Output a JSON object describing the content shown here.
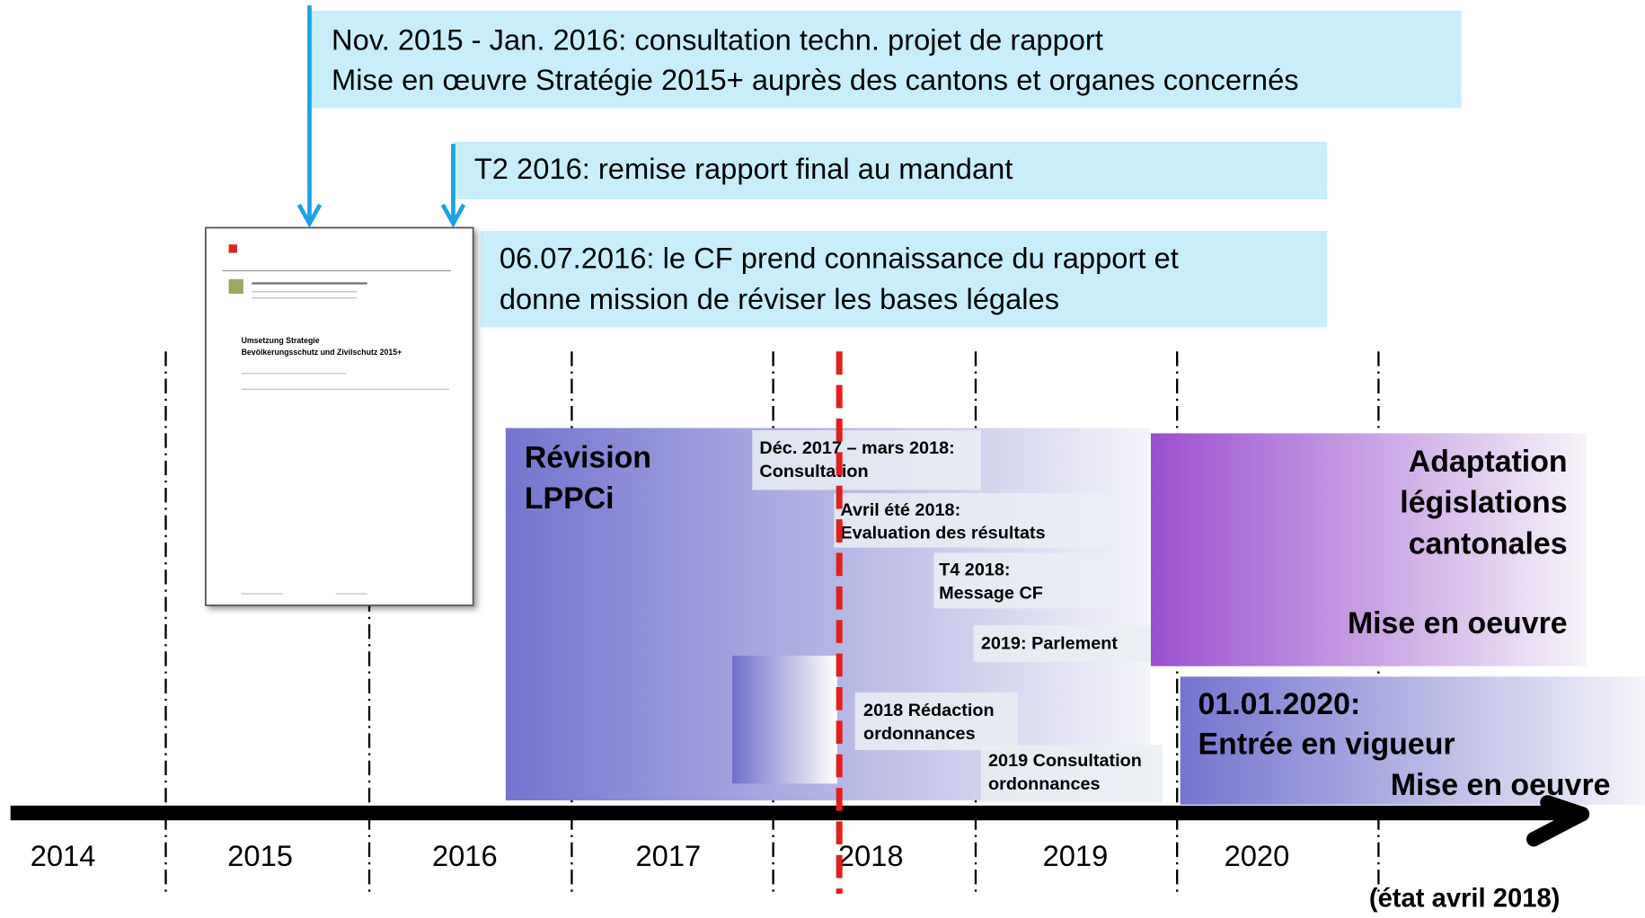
{
  "callouts": [
    {
      "lines": [
        "Nov. 2015 - Jan. 2016: consultation techn. projet de rapport",
        "Mise en œuvre Stratégie 2015+ auprès des cantons et organes concernés"
      ]
    },
    {
      "lines": [
        "T2 2016: remise rapport final au mandant"
      ]
    },
    {
      "lines": [
        "06.07.2016: le CF prend connaissance du rapport et",
        "donne mission de réviser les bases légales"
      ]
    }
  ],
  "document": {
    "title": [
      "Umsetzung Strategie",
      "Bevölkerungsschutz und Zivilschutz 2015+"
    ]
  },
  "revision": {
    "lines": [
      "Révision",
      "LPPCi"
    ]
  },
  "steps": [
    {
      "lines": [
        "Déc. 2017 – mars 2018:",
        "Consultation"
      ]
    },
    {
      "lines": [
        "Avril  été 2018:",
        "Evaluation des résultats"
      ]
    },
    {
      "lines": [
        "T4 2018:",
        "Message CF"
      ]
    },
    {
      "lines": [
        "2019: Parlement"
      ]
    },
    {
      "lines": [
        "2018 Rédaction",
        "ordonnances"
      ]
    },
    {
      "lines": [
        "2019 Consultation",
        "ordonnances"
      ]
    }
  ],
  "adaptation": {
    "lines": [
      "Adaptation",
      "législations",
      "cantonales"
    ],
    "sub": "Mise en oeuvre"
  },
  "vigueur": {
    "lines": [
      "01.01.2020:",
      "Entrée en vigueur"
    ],
    "sub": "Mise en oeuvre"
  },
  "years": [
    "2014",
    "2015",
    "2016",
    "2017",
    "2018",
    "2019",
    "2020"
  ],
  "note": "(état avril 2018)"
}
